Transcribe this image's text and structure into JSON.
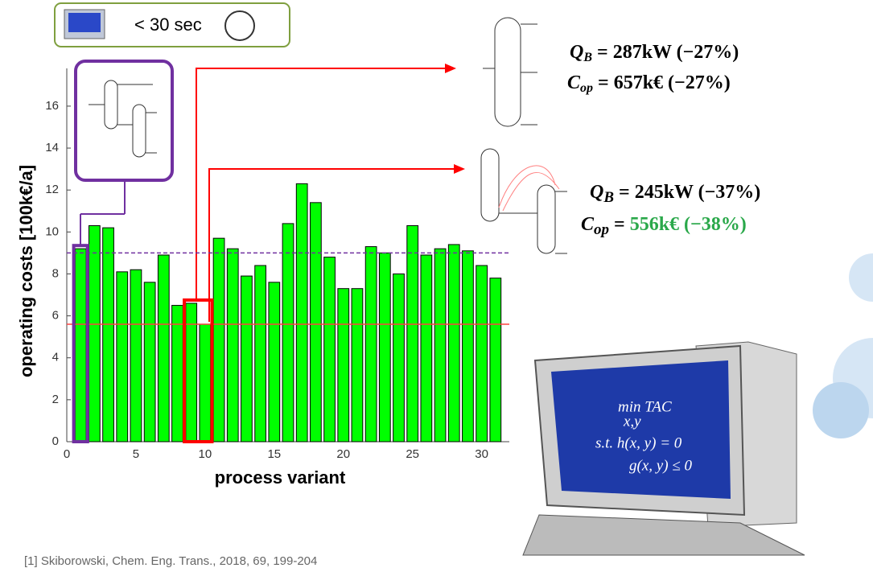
{
  "chart_data": {
    "type": "bar",
    "xlabel": "process variant",
    "ylabel": "operating costs  [100k€/a]",
    "x": [
      1,
      2,
      3,
      4,
      5,
      6,
      7,
      8,
      9,
      10,
      11,
      12,
      13,
      14,
      15,
      16,
      17,
      18,
      19,
      20,
      21,
      22,
      23,
      24,
      25,
      26,
      27,
      28,
      29,
      30,
      31
    ],
    "values": [
      9.2,
      10.3,
      10.2,
      8.1,
      8.2,
      7.6,
      8.9,
      6.5,
      6.6,
      5.6,
      9.7,
      9.2,
      7.9,
      8.4,
      7.6,
      10.4,
      12.3,
      11.4,
      8.8,
      7.3,
      7.3,
      9.3,
      9.0,
      8.0,
      10.3,
      8.9,
      9.2,
      9.4,
      9.1,
      8.4,
      7.8
    ],
    "color": "#00ff00",
    "xlim": [
      0,
      32
    ],
    "ylim": [
      0,
      17.8
    ],
    "xticks": [
      0,
      5,
      10,
      15,
      20,
      25,
      30
    ],
    "yticks": [
      0,
      2,
      4,
      6,
      8,
      10,
      12,
      14,
      16
    ],
    "reference_lines": [
      {
        "value": 9.0,
        "color": "#7030a0"
      },
      {
        "value": 5.6,
        "color": "#ff4040"
      }
    ],
    "highlights": [
      {
        "from": 1,
        "to": 1,
        "color": "#7030a0"
      },
      {
        "from": 9,
        "to": 10,
        "color": "#ff0000"
      }
    ]
  },
  "timer": "< 30 sec",
  "results": [
    {
      "q": "= 287kW (−27%)",
      "c": "= 657k€ (−27%)"
    },
    {
      "q": "= 245kW (−37%)",
      "c_eq": "= ",
      "c": "556k€ (−38%)"
    }
  ],
  "computer": {
    "line1": "min TAC",
    "line1_sub": "x,y",
    "line2": "s.t. h(x, y) = 0",
    "line3": "g(x, y) ≤ 0"
  },
  "footnote": "[1] Skiborowski, Chem. Eng. Trans., 2018, 69, 199-204"
}
